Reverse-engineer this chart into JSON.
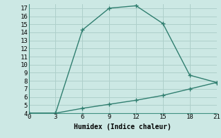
{
  "xlabel": "Humidex (Indice chaleur)",
  "line1_x": [
    0,
    3,
    6,
    9,
    12,
    15,
    18,
    21
  ],
  "line1_y": [
    4,
    4,
    14.3,
    17,
    17.3,
    15.1,
    8.7,
    7.8
  ],
  "line2_x": [
    0,
    3,
    6,
    9,
    12,
    15,
    18,
    21
  ],
  "line2_y": [
    4,
    4,
    4.6,
    5.1,
    5.6,
    6.2,
    7.0,
    7.8
  ],
  "line_color": "#2e7d6e",
  "bg_color": "#cce8e4",
  "grid_color": "#aecfca",
  "ylim": [
    4,
    17.5
  ],
  "xlim": [
    0,
    21
  ],
  "yticks": [
    4,
    5,
    6,
    7,
    8,
    9,
    10,
    11,
    12,
    13,
    14,
    15,
    16,
    17
  ],
  "xticks": [
    0,
    3,
    6,
    9,
    12,
    15,
    18,
    21
  ],
  "marker": "+",
  "marker_size": 5,
  "line_width": 1.0,
  "tick_labelsize": 6.5
}
